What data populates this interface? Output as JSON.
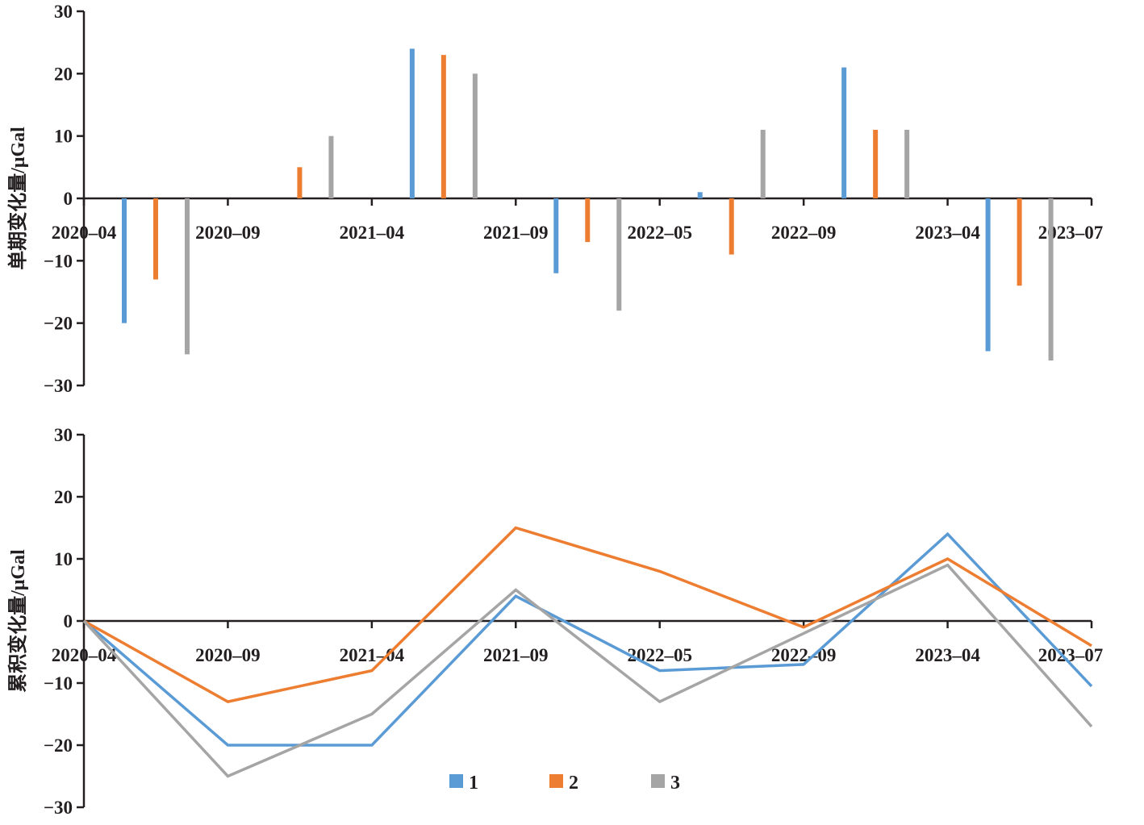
{
  "chart_data": [
    {
      "type": "bar",
      "ylabel": "单期变化量/μGal",
      "ylim": [
        -30,
        30
      ],
      "yticks": [
        "30",
        "20",
        "10",
        "0",
        "−10",
        "−20",
        "−30"
      ],
      "ytick_values": [
        30,
        20,
        10,
        0,
        -10,
        -20,
        -30
      ],
      "xticks": [
        "2020–04",
        "2020–09",
        "2021–04",
        "2021–09",
        "2022–05",
        "2022–09",
        "2023–04",
        "2023–07"
      ],
      "categories": [
        "2020–04~2020–09",
        "2020–09~2021–04",
        "2021–04~2021–09",
        "2021–09~2022–05",
        "2022–05~2022–09",
        "2022–09~2023–04",
        "2023–04~2023–07"
      ],
      "series": [
        {
          "name": "1",
          "color": "#5b9bd5",
          "values": [
            -20,
            0,
            24,
            -12,
            1,
            21,
            -24.5
          ]
        },
        {
          "name": "2",
          "color": "#ed7d31",
          "values": [
            -13,
            5,
            23,
            -7,
            -9,
            11,
            -14
          ]
        },
        {
          "name": "3",
          "color": "#a5a5a5",
          "values": [
            -25,
            10,
            20,
            -18,
            11,
            11,
            -26
          ]
        }
      ]
    },
    {
      "type": "line",
      "ylabel": "累积变化量/μGal",
      "ylim": [
        -30,
        30
      ],
      "yticks": [
        "30",
        "20",
        "10",
        "0",
        "−10",
        "−20",
        "−30"
      ],
      "ytick_values": [
        30,
        20,
        10,
        0,
        -10,
        -20,
        -30
      ],
      "x": [
        "2020–04",
        "2020–09",
        "2021–04",
        "2021–09",
        "2022–05",
        "2022–09",
        "2023–04",
        "2023–07"
      ],
      "series": [
        {
          "name": "1",
          "color": "#5b9bd5",
          "values": [
            0,
            -20,
            -20,
            4,
            -8,
            -7,
            14,
            -10.5
          ]
        },
        {
          "name": "2",
          "color": "#ed7d31",
          "values": [
            0,
            -13,
            -8,
            15,
            8,
            -1,
            10,
            -4
          ]
        },
        {
          "name": "3",
          "color": "#a5a5a5",
          "values": [
            0,
            -25,
            -15,
            5,
            -13,
            -2,
            9,
            -17
          ]
        }
      ]
    }
  ],
  "legend": {
    "position": "bottom-center",
    "items": [
      {
        "label": "1",
        "color": "#5b9bd5"
      },
      {
        "label": "2",
        "color": "#ed7d31"
      },
      {
        "label": "3",
        "color": "#a5a5a5"
      }
    ]
  }
}
